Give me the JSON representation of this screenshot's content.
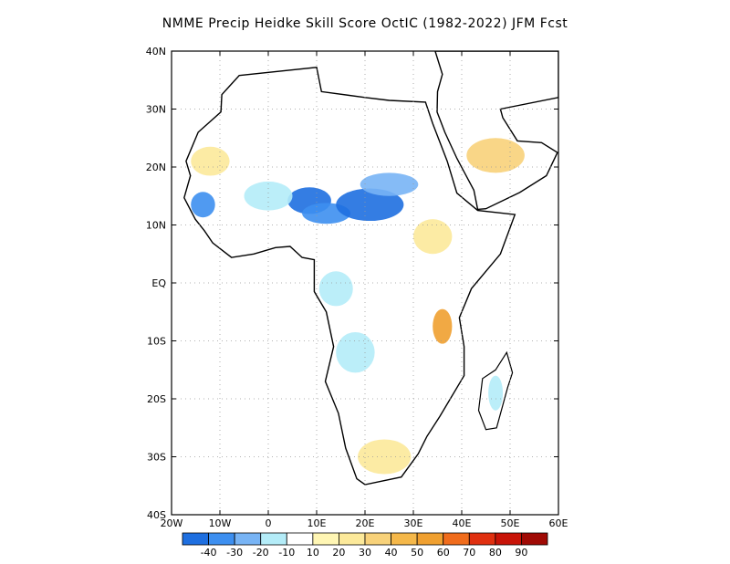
{
  "title": "NMME Precip Heidke Skill Score OctIC (1982-2022) JFM Fcst",
  "map": {
    "lon_range": [
      -20,
      60
    ],
    "lat_range": [
      -40,
      40
    ],
    "x_ticks": [
      {
        "lon": -20,
        "label": "20W"
      },
      {
        "lon": -10,
        "label": "10W"
      },
      {
        "lon": 0,
        "label": "0"
      },
      {
        "lon": 10,
        "label": "10E"
      },
      {
        "lon": 20,
        "label": "20E"
      },
      {
        "lon": 30,
        "label": "30E"
      },
      {
        "lon": 40,
        "label": "40E"
      },
      {
        "lon": 50,
        "label": "50E"
      },
      {
        "lon": 60,
        "label": "60E"
      }
    ],
    "y_ticks": [
      {
        "lat": 40,
        "label": "40N"
      },
      {
        "lat": 30,
        "label": "30N"
      },
      {
        "lat": 20,
        "label": "20N"
      },
      {
        "lat": 10,
        "label": "10N"
      },
      {
        "lat": 0,
        "label": "EQ"
      },
      {
        "lat": -10,
        "label": "10S"
      },
      {
        "lat": -20,
        "label": "20S"
      },
      {
        "lat": -30,
        "label": "30S"
      },
      {
        "lat": -40,
        "label": "40S"
      }
    ],
    "gridlines": true,
    "skill_regions": [
      {
        "name": "sahel-west",
        "lon": -13.5,
        "lat": 13.5,
        "rx": 2.5,
        "ry": 2.2,
        "color": "#3d8ff0"
      },
      {
        "name": "sahel-central-niger",
        "lon": 8.5,
        "lat": 14.2,
        "rx": 4.5,
        "ry": 2.3,
        "color": "#1e6fe0"
      },
      {
        "name": "lake-chad",
        "lon": 12,
        "lat": 12,
        "rx": 5,
        "ry": 1.8,
        "color": "#3d8ff0"
      },
      {
        "name": "sahel-chad-sudan",
        "lon": 21,
        "lat": 13.5,
        "rx": 7,
        "ry": 2.8,
        "color": "#1e6fe0"
      },
      {
        "name": "sudan-light",
        "lon": 25,
        "lat": 17,
        "rx": 6,
        "ry": 2,
        "color": "#78b4f5"
      },
      {
        "name": "mali-light",
        "lon": 0,
        "lat": 15,
        "rx": 5,
        "ry": 2.5,
        "color": "#b4ecf8"
      },
      {
        "name": "congo-light",
        "lon": 14,
        "lat": -1,
        "rx": 3.5,
        "ry": 3,
        "color": "#b4ecf8"
      },
      {
        "name": "angola-light",
        "lon": 18,
        "lat": -12,
        "rx": 4,
        "ry": 3.5,
        "color": "#b4ecf8"
      },
      {
        "name": "tanzania-warm",
        "lon": 36,
        "lat": -7.5,
        "rx": 2,
        "ry": 3,
        "color": "#f0a030"
      },
      {
        "name": "saudi-warm",
        "lon": 47,
        "lat": 22,
        "rx": 6,
        "ry": 3,
        "color": "#f8d27a"
      },
      {
        "name": "south-africa-warm",
        "lon": 24,
        "lat": -30,
        "rx": 5.5,
        "ry": 3,
        "color": "#fce99a"
      },
      {
        "name": "ethiopia-warm",
        "lon": 34,
        "lat": 8,
        "rx": 4,
        "ry": 3,
        "color": "#fce99a"
      },
      {
        "name": "west-africa-warm",
        "lon": -12,
        "lat": 21,
        "rx": 4,
        "ry": 2.5,
        "color": "#fce99a"
      },
      {
        "name": "madagascar-light",
        "lon": 47,
        "lat": -19,
        "rx": 1.5,
        "ry": 3,
        "color": "#b4ecf8"
      }
    ]
  },
  "colorbar": {
    "labels": [
      "-40",
      "-30",
      "-20",
      "-10",
      "10",
      "20",
      "30",
      "40",
      "50",
      "60",
      "70",
      "80",
      "90"
    ],
    "colors": [
      "#1e6fe0",
      "#3d8ff0",
      "#78b4f5",
      "#b4ecf8",
      "#ffffff",
      "#fff6b4",
      "#fce99a",
      "#f8d27a",
      "#f5b84a",
      "#f0a030",
      "#f06c1c",
      "#e03010",
      "#c81408",
      "#a00a05"
    ]
  }
}
